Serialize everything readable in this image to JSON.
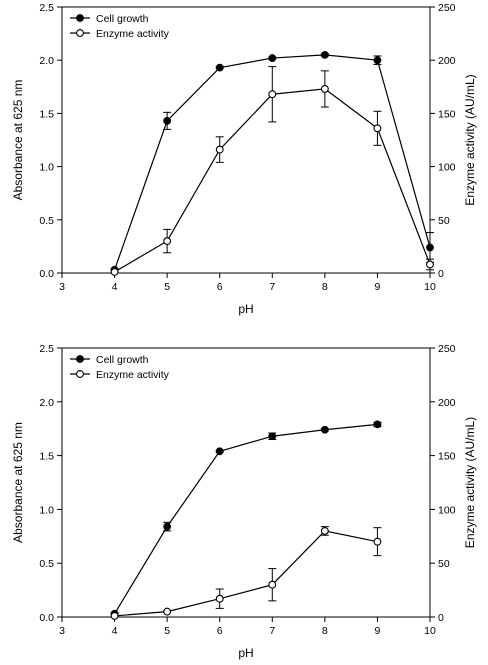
{
  "chart_data": [
    {
      "type": "line",
      "xlabel": "pH",
      "ylabel": "Absorbance at 625 nm",
      "y2label": "Enzyme activity (AU/mL)",
      "xlim": [
        3,
        10
      ],
      "ylim": [
        0,
        2.5
      ],
      "y2lim": [
        0,
        250
      ],
      "x_ticks": [
        "3",
        "4",
        "5",
        "6",
        "7",
        "8",
        "9",
        "10"
      ],
      "y_ticks": [
        "0.0",
        "0.5",
        "1.0",
        "1.5",
        "2.0",
        "2.5"
      ],
      "y2_ticks": [
        "0",
        "50",
        "100",
        "150",
        "200",
        "250"
      ],
      "legend_position": "top-left",
      "series": [
        {
          "name": "Cell growth",
          "axis": "left",
          "marker": "filled-circle",
          "x": [
            4,
            5,
            6,
            7,
            8,
            9,
            10
          ],
          "y": [
            0.03,
            1.43,
            1.93,
            2.02,
            2.05,
            2.0,
            0.24
          ],
          "err": [
            0.01,
            0.08,
            0.01,
            0.01,
            0.01,
            0.04,
            0.14
          ]
        },
        {
          "name": "Enzyme activity",
          "axis": "right",
          "marker": "open-circle",
          "x": [
            4,
            5,
            6,
            7,
            8,
            9,
            10
          ],
          "y": [
            1,
            30,
            116,
            168,
            173,
            136,
            8
          ],
          "err": [
            0.5,
            11,
            12,
            26,
            17,
            16,
            5
          ]
        }
      ]
    },
    {
      "type": "line",
      "xlabel": "pH",
      "ylabel": "Absorbance at 625 nm",
      "y2label": "Enzyme activity (AU/mL)",
      "xlim": [
        3,
        10
      ],
      "ylim": [
        0,
        2.5
      ],
      "y2lim": [
        0,
        250
      ],
      "x_ticks": [
        "3",
        "4",
        "5",
        "6",
        "7",
        "8",
        "9",
        "10"
      ],
      "y_ticks": [
        "0.0",
        "0.5",
        "1.0",
        "1.5",
        "2.0",
        "2.5"
      ],
      "y2_ticks": [
        "0",
        "50",
        "100",
        "150",
        "200",
        "250"
      ],
      "legend_position": "top-left",
      "series": [
        {
          "name": "Cell growth",
          "axis": "left",
          "marker": "filled-circle",
          "x": [
            4,
            5,
            6,
            7,
            8,
            9
          ],
          "y": [
            0.03,
            0.84,
            1.54,
            1.68,
            1.74,
            1.79
          ],
          "err": [
            0.01,
            0.04,
            0.01,
            0.03,
            0.01,
            0.02
          ]
        },
        {
          "name": "Enzyme activity",
          "axis": "right",
          "marker": "open-circle",
          "x": [
            4,
            5,
            6,
            7,
            8,
            9
          ],
          "y": [
            1,
            5,
            17,
            30,
            80,
            70
          ],
          "err": [
            0.5,
            1,
            9,
            15,
            4,
            13
          ]
        }
      ]
    }
  ]
}
